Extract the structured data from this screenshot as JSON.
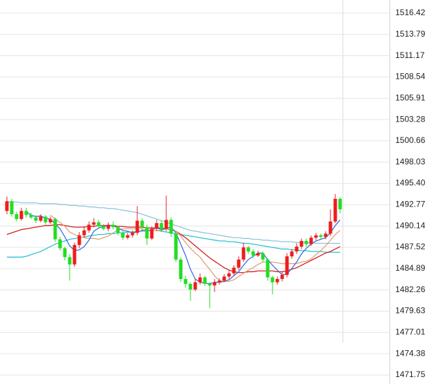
{
  "chart_data": {
    "type": "candlestick",
    "up_color": "#ee1c1c",
    "down_color": "#22dd22",
    "open": [
      1492.0,
      1493.2,
      1491.6,
      1491.0,
      1492.0,
      1491.5,
      1491.2,
      1490.8,
      1491.3,
      1490.6,
      1491.0,
      1488.5,
      1487.4,
      1486.3,
      1485.4,
      1487.8,
      1489.0,
      1489.6,
      1490.3,
      1490.6,
      1490.1,
      1489.8,
      1490.3,
      1490.0,
      1489.3,
      1488.7,
      1489.0,
      1489.3,
      1490.8,
      1490.0,
      1488.6,
      1489.8,
      1490.5,
      1489.8,
      1490.9,
      1489.2,
      1486.0,
      1483.6,
      1483.0,
      1482.3,
      1483.2,
      1483.8,
      1483.0,
      1482.8,
      1483.2,
      1483.4,
      1483.9,
      1484.3,
      1485.0,
      1486.0,
      1487.5,
      1487.0,
      1486.5,
      1486.8,
      1486.0,
      1483.8,
      1483.2,
      1483.6,
      1484.1,
      1486.4,
      1487.0,
      1487.6,
      1488.3,
      1487.9,
      1488.7,
      1489.0,
      1488.8,
      1489.2,
      1490.7,
      1493.5
    ],
    "high": [
      1493.8,
      1493.5,
      1491.9,
      1492.4,
      1492.4,
      1491.8,
      1491.5,
      1491.6,
      1491.5,
      1491.3,
      1491.2,
      1488.8,
      1487.6,
      1486.7,
      1488.1,
      1489.4,
      1490.1,
      1490.7,
      1491.1,
      1490.9,
      1490.4,
      1490.6,
      1490.7,
      1490.2,
      1489.5,
      1489.3,
      1489.6,
      1492.6,
      1491.1,
      1490.3,
      1490.1,
      1490.9,
      1490.8,
      1493.9,
      1491.2,
      1489.4,
      1486.3,
      1484.0,
      1483.2,
      1483.6,
      1484.3,
      1484.0,
      1483.2,
      1483.6,
      1483.7,
      1484.2,
      1484.7,
      1485.3,
      1486.4,
      1488.1,
      1487.7,
      1487.3,
      1487.1,
      1487.0,
      1486.2,
      1484.0,
      1483.9,
      1484.5,
      1486.8,
      1487.3,
      1488.0,
      1488.6,
      1488.6,
      1489.0,
      1489.3,
      1489.2,
      1489.5,
      1492.2,
      1494.1,
      1493.7
    ],
    "low": [
      1491.6,
      1491.3,
      1490.7,
      1490.8,
      1491.2,
      1491.0,
      1490.5,
      1490.6,
      1490.3,
      1490.4,
      1488.2,
      1487.1,
      1485.9,
      1483.4,
      1485.1,
      1487.4,
      1488.7,
      1489.3,
      1490.0,
      1489.8,
      1489.6,
      1489.5,
      1489.7,
      1489.0,
      1488.4,
      1488.5,
      1488.7,
      1489.0,
      1489.7,
      1487.8,
      1488.4,
      1489.5,
      1489.4,
      1489.5,
      1488.8,
      1485.7,
      1483.2,
      1482.5,
      1480.9,
      1482.1,
      1482.9,
      1482.7,
      1480.0,
      1482.0,
      1482.9,
      1483.2,
      1483.6,
      1484.0,
      1484.7,
      1485.7,
      1486.7,
      1486.2,
      1486.3,
      1485.7,
      1483.4,
      1481.7,
      1482.9,
      1483.3,
      1483.8,
      1486.1,
      1486.7,
      1487.3,
      1487.6,
      1487.7,
      1488.4,
      1488.5,
      1488.5,
      1488.9,
      1490.5,
      1491.7
    ],
    "close": [
      1493.2,
      1491.6,
      1491.0,
      1492.0,
      1491.5,
      1491.2,
      1490.8,
      1491.3,
      1490.6,
      1491.0,
      1488.5,
      1487.4,
      1486.3,
      1485.4,
      1487.8,
      1489.0,
      1489.6,
      1490.3,
      1490.6,
      1490.1,
      1489.8,
      1490.3,
      1490.0,
      1489.3,
      1488.7,
      1489.0,
      1489.3,
      1490.8,
      1490.0,
      1488.6,
      1489.8,
      1490.5,
      1489.8,
      1490.9,
      1489.2,
      1486.0,
      1483.6,
      1483.0,
      1482.3,
      1483.2,
      1483.8,
      1483.0,
      1482.8,
      1483.2,
      1483.4,
      1483.9,
      1484.3,
      1485.0,
      1486.0,
      1487.5,
      1487.0,
      1486.5,
      1486.8,
      1486.0,
      1483.8,
      1483.2,
      1483.6,
      1484.1,
      1486.4,
      1487.0,
      1487.6,
      1488.3,
      1487.9,
      1488.7,
      1489.0,
      1488.8,
      1489.2,
      1490.7,
      1493.5,
      1492.2
    ],
    "series": [
      {
        "color": "#8ec5dc",
        "values": [
          1493.1,
          1493.1,
          1493.1,
          1493.0,
          1493.0,
          1493.0,
          1493.0,
          1492.9,
          1492.9,
          1492.9,
          1492.9,
          1492.8,
          1492.8,
          1492.7,
          1492.7,
          1492.6,
          1492.6,
          1492.5,
          1492.5,
          1492.4,
          1492.4,
          1492.3,
          1492.3,
          1492.2,
          1492.1,
          1492.0,
          1491.9,
          1491.8,
          1491.6,
          1491.4,
          1491.2,
          1491.0,
          1490.8,
          1490.6,
          1490.4,
          1490.2,
          1490.0,
          1489.8,
          1489.6,
          1489.5,
          1489.4,
          1489.3,
          1489.2,
          1489.1,
          1489.0,
          1488.9,
          1488.8,
          1488.7,
          1488.7,
          1488.6,
          1488.6,
          1488.5,
          1488.5,
          1488.4,
          1488.4,
          1488.3,
          1488.3,
          1488.2,
          1488.2,
          1488.2,
          1488.1,
          1488.1,
          1488.1,
          1488.1,
          1488.0,
          1488.0,
          1488.0,
          1488.0,
          1488.0,
          1488.0
        ]
      },
      {
        "color": "#2cc3d2",
        "values": [
          1486.3,
          1486.3,
          1486.3,
          1486.3,
          1486.4,
          1486.6,
          1486.8,
          1487.0,
          1487.3,
          1487.6,
          1487.9,
          1488.1,
          1488.3,
          1488.5,
          1488.6,
          1488.7,
          1488.8,
          1488.9,
          1489.0,
          1489.1,
          1489.1,
          1489.2,
          1489.2,
          1489.3,
          1489.3,
          1489.4,
          1489.4,
          1489.5,
          1489.5,
          1489.6,
          1489.6,
          1489.6,
          1489.5,
          1489.4,
          1489.3,
          1489.2,
          1489.1,
          1489.0,
          1488.9,
          1488.8,
          1488.7,
          1488.6,
          1488.5,
          1488.4,
          1488.3,
          1488.3,
          1488.2,
          1488.2,
          1488.1,
          1488.0,
          1488.0,
          1487.9,
          1487.8,
          1487.7,
          1487.6,
          1487.5,
          1487.4,
          1487.3,
          1487.3,
          1487.2,
          1487.2,
          1487.1,
          1487.1,
          1487.0,
          1487.0,
          1487.0,
          1486.9,
          1486.9,
          1486.9,
          1486.9
        ]
      },
      {
        "color": "#d41e1e",
        "values": [
          1489.1,
          1489.3,
          1489.5,
          1489.7,
          1489.8,
          1489.9,
          1490.0,
          1490.1,
          1490.2,
          1490.2,
          1490.3,
          1490.3,
          1490.2,
          1490.1,
          1490.0,
          1490.0,
          1490.0,
          1490.1,
          1490.1,
          1490.2,
          1490.2,
          1490.2,
          1490.2,
          1490.1,
          1490.1,
          1490.0,
          1490.0,
          1490.0,
          1490.0,
          1489.9,
          1489.9,
          1489.9,
          1489.9,
          1489.8,
          1489.7,
          1489.5,
          1489.1,
          1488.7,
          1488.2,
          1487.7,
          1487.2,
          1486.7,
          1486.2,
          1485.8,
          1485.4,
          1485.0,
          1484.7,
          1484.5,
          1484.4,
          1484.4,
          1484.5,
          1484.5,
          1484.6,
          1484.6,
          1484.6,
          1484.6,
          1484.5,
          1484.5,
          1484.6,
          1484.8,
          1485.0,
          1485.3,
          1485.6,
          1485.9,
          1486.2,
          1486.5,
          1486.8,
          1487.0,
          1487.3,
          1487.6
        ]
      },
      {
        "color": "#e0a27a",
        "values": [
          null,
          null,
          null,
          null,
          null,
          null,
          null,
          null,
          null,
          1491.5,
          1491.0,
          1490.6,
          1490.1,
          1489.4,
          1489.1,
          1488.8,
          1488.7,
          1488.6,
          1488.6,
          1488.5,
          1488.7,
          1488.9,
          1489.3,
          1489.7,
          1489.8,
          1489.8,
          1489.8,
          1489.8,
          1489.8,
          1489.6,
          1489.6,
          1489.6,
          1489.6,
          1489.8,
          1489.8,
          1489.5,
          1488.9,
          1488.1,
          1487.4,
          1486.8,
          1486.3,
          1485.5,
          1484.8,
          1484.0,
          1483.4,
          1483.3,
          1483.3,
          1483.5,
          1483.9,
          1484.3,
          1484.7,
          1485.0,
          1485.4,
          1485.7,
          1485.7,
          1485.7,
          1485.6,
          1485.5,
          1485.5,
          1485.5,
          1485.5,
          1485.7,
          1485.8,
          1486.1,
          1486.6,
          1487.1,
          1487.7,
          1488.4,
          1489.1,
          1489.6
        ]
      },
      {
        "color": "#3a6fe0",
        "values": [
          null,
          null,
          null,
          null,
          1491.9,
          1491.5,
          1491.3,
          1491.4,
          1491.1,
          1491.0,
          1490.4,
          1489.8,
          1488.8,
          1487.7,
          1487.1,
          1487.2,
          1487.6,
          1488.4,
          1489.5,
          1489.9,
          1490.1,
          1490.2,
          1490.2,
          1489.9,
          1489.6,
          1489.5,
          1489.3,
          1489.4,
          1489.6,
          1489.5,
          1489.7,
          1489.9,
          1489.7,
          1489.9,
          1490.0,
          1489.3,
          1487.9,
          1486.5,
          1484.8,
          1483.6,
          1483.2,
          1483.1,
          1483.0,
          1483.2,
          1483.2,
          1483.3,
          1483.5,
          1484.0,
          1484.5,
          1485.3,
          1486.0,
          1486.4,
          1486.8,
          1486.8,
          1486.0,
          1485.3,
          1484.7,
          1484.1,
          1484.2,
          1484.9,
          1485.7,
          1486.7,
          1487.4,
          1487.9,
          1488.3,
          1488.5,
          1488.7,
          1489.3,
          1490.2,
          1490.9
        ]
      }
    ],
    "ylim": [
      1470.64,
      1518.04
    ],
    "yticks": [
      1516.42,
      1513.79,
      1511.17,
      1508.54,
      1505.91,
      1503.28,
      1500.66,
      1498.03,
      {
        "value": 1495.4,
        "label": "1495.40"
      },
      1492.77,
      1490.14,
      1487.52,
      1484.89,
      1482.26,
      1479.63,
      1477.01,
      1474.38,
      1471.75
    ],
    "grid": true
  }
}
